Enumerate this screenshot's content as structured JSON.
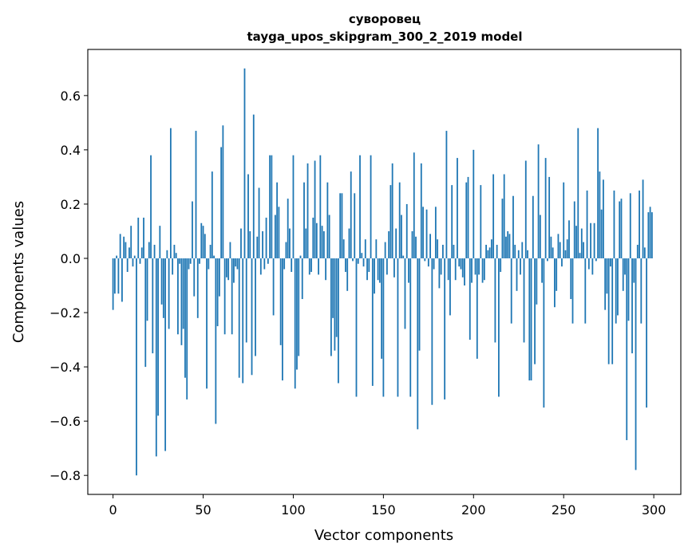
{
  "chart_data": {
    "type": "bar",
    "title": "суворовец",
    "subtitle": "tayga_upos_skipgram_300_2_2019 model",
    "xlabel": "Vector components",
    "ylabel": "Components values",
    "xlim": [
      -14,
      315
    ],
    "ylim": [
      -0.87,
      0.77
    ],
    "xticks": [
      0,
      50,
      100,
      150,
      200,
      250,
      300
    ],
    "yticks": [
      -0.8,
      -0.6,
      -0.4,
      -0.2,
      0.0,
      0.2,
      0.4,
      0.6
    ],
    "ytick_labels": [
      "−0.8",
      "−0.6",
      "−0.4",
      "−0.2",
      "0.0",
      "0.2",
      "0.4",
      "0.6"
    ],
    "bar_color": "#1f77b4",
    "grid": false,
    "values": [
      -0.19,
      -0.13,
      0.01,
      -0.13,
      0.09,
      -0.16,
      0.08,
      0.06,
      -0.05,
      0.04,
      0.12,
      -0.03,
      0.01,
      -0.8,
      0.15,
      -0.02,
      0.04,
      0.15,
      -0.4,
      -0.23,
      0.06,
      0.38,
      -0.35,
      0.05,
      -0.73,
      -0.58,
      0.12,
      -0.17,
      -0.22,
      -0.71,
      0.03,
      -0.26,
      0.48,
      -0.06,
      0.05,
      0.02,
      -0.28,
      -0.02,
      -0.32,
      -0.26,
      -0.44,
      -0.52,
      -0.04,
      -0.02,
      0.21,
      -0.14,
      0.47,
      -0.22,
      -0.02,
      0.13,
      0.12,
      0.09,
      -0.48,
      -0.04,
      0.05,
      0.32,
      0.01,
      -0.61,
      -0.25,
      -0.14,
      0.41,
      0.49,
      -0.28,
      -0.07,
      -0.08,
      0.06,
      -0.28,
      -0.09,
      -0.03,
      -0.04,
      -0.44,
      0.11,
      -0.46,
      0.7,
      -0.31,
      0.31,
      0.1,
      -0.43,
      0.53,
      -0.36,
      0.08,
      0.26,
      -0.06,
      0.1,
      -0.04,
      0.15,
      -0.02,
      0.38,
      0.38,
      -0.21,
      0.16,
      0.28,
      0.19,
      -0.32,
      -0.45,
      -0.04,
      0.06,
      0.22,
      0.11,
      -0.05,
      0.38,
      -0.48,
      -0.41,
      -0.36,
      0.01,
      -0.15,
      0.28,
      0.11,
      0.35,
      -0.06,
      -0.05,
      0.15,
      0.36,
      0.13,
      -0.06,
      0.38,
      0.12,
      0.1,
      -0.08,
      0.28,
      0.16,
      -0.36,
      -0.22,
      -0.34,
      -0.29,
      -0.46,
      0.24,
      0.24,
      0.07,
      -0.05,
      -0.12,
      0.11,
      0.32,
      -0.01,
      0.24,
      -0.51,
      -0.02,
      0.38,
      0.02,
      -0.03,
      0.07,
      -0.08,
      -0.05,
      0.38,
      -0.47,
      -0.13,
      0.07,
      -0.08,
      -0.09,
      -0.37,
      -0.51,
      0.06,
      -0.06,
      0.1,
      0.27,
      0.35,
      -0.07,
      0.11,
      -0.51,
      0.28,
      0.16,
      0.01,
      -0.26,
      0.2,
      -0.09,
      -0.51,
      0.1,
      0.39,
      0.08,
      -0.63,
      -0.34,
      0.35,
      0.19,
      -0.01,
      0.18,
      -0.03,
      0.09,
      -0.54,
      -0.04,
      0.19,
      0.07,
      -0.11,
      -0.06,
      0.05,
      -0.52,
      0.47,
      -0.08,
      -0.21,
      0.27,
      0.05,
      -0.08,
      0.37,
      -0.03,
      -0.04,
      -0.07,
      -0.1,
      0.28,
      0.3,
      -0.3,
      -0.09,
      0.4,
      -0.06,
      -0.37,
      -0.06,
      0.27,
      -0.09,
      -0.08,
      0.05,
      0.03,
      0.04,
      0.07,
      0.31,
      -0.31,
      0.05,
      -0.51,
      -0.05,
      0.22,
      0.31,
      0.08,
      0.1,
      0.09,
      -0.24,
      0.23,
      0.05,
      -0.12,
      0.03,
      -0.06,
      0.06,
      -0.31,
      0.36,
      0.03,
      -0.45,
      -0.45,
      0.23,
      -0.39,
      -0.17,
      0.42,
      0.16,
      -0.09,
      -0.55,
      0.37,
      -0.01,
      0.3,
      0.08,
      0.04,
      -0.18,
      -0.12,
      0.09,
      0.06,
      -0.03,
      0.28,
      0.03,
      0.07,
      0.14,
      -0.15,
      -0.24,
      0.21,
      0.12,
      0.48,
      0.02,
      0.11,
      0.06,
      -0.24,
      0.25,
      -0.04,
      0.13,
      -0.06,
      0.13,
      -0.01,
      0.48,
      0.32,
      0.18,
      0.29,
      -0.19,
      -0.13,
      -0.39,
      -0.03,
      -0.39,
      0.25,
      -0.24,
      -0.21,
      0.21,
      0.22,
      -0.12,
      -0.06,
      -0.67,
      -0.23,
      0.24,
      -0.35,
      -0.09,
      -0.78,
      0.05,
      0.25,
      -0.24,
      0.29,
      0.04,
      -0.55,
      0.17,
      0.19,
      0.17
    ]
  }
}
